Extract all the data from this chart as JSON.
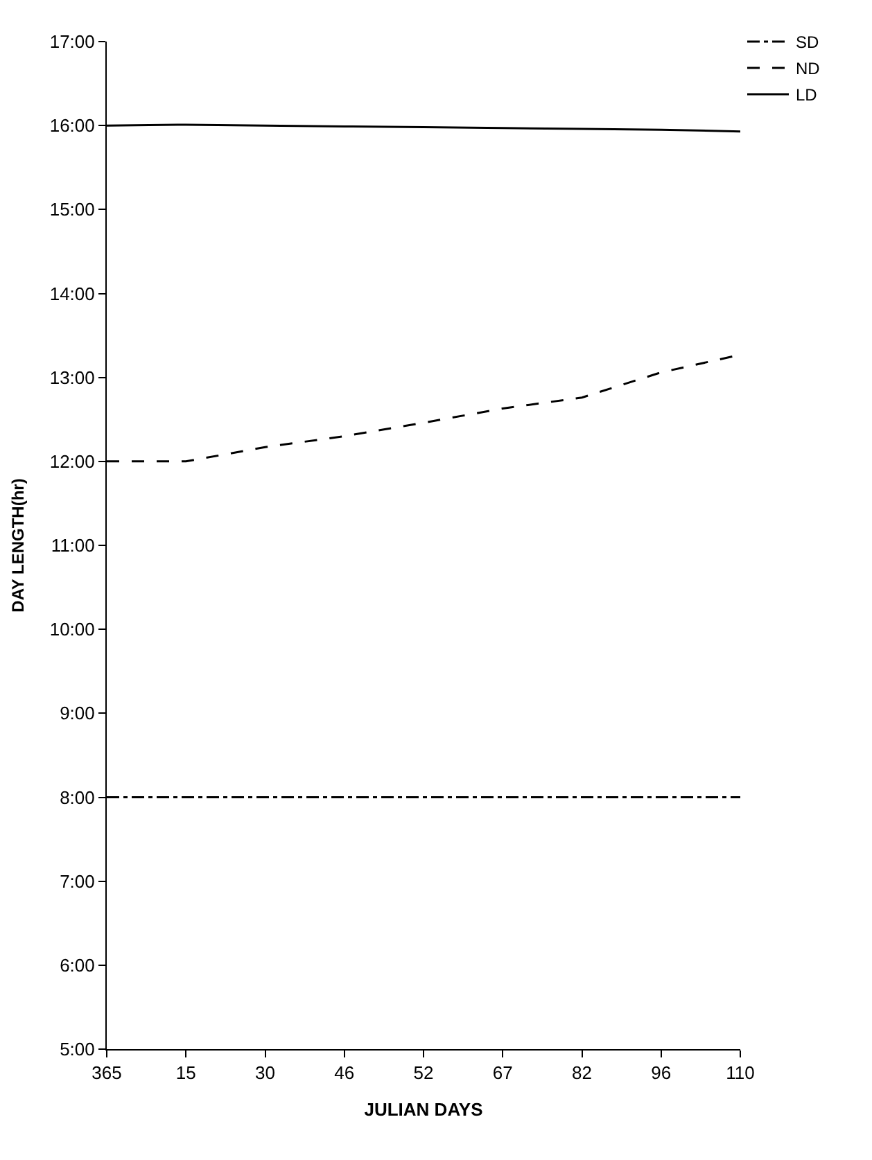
{
  "chart_data": {
    "type": "line",
    "xlabel": "JULIAN DAYS",
    "ylabel": "DAY LENGTH(hr)",
    "categories": [
      "365",
      "15",
      "30",
      "46",
      "52",
      "67",
      "82",
      "96",
      "110"
    ],
    "series": [
      {
        "name": "SD",
        "color": "#000000",
        "line_style": "dashdot",
        "values": [
          8.0,
          8.0,
          8.0,
          8.0,
          8.0,
          8.0,
          8.0,
          8.0,
          8.0
        ]
      },
      {
        "name": "ND",
        "color": "#000000",
        "line_style": "dashed",
        "values": [
          12.0,
          12.0,
          12.17,
          12.3,
          12.46,
          12.63,
          12.76,
          13.06,
          13.27
        ]
      },
      {
        "name": "LD",
        "color": "#000000",
        "line_style": "solid",
        "values": [
          16.0,
          16.01,
          16.0,
          15.99,
          15.98,
          15.97,
          15.96,
          15.95,
          15.93
        ]
      }
    ],
    "ylim": [
      5,
      17
    ],
    "yticks": [
      {
        "value": 5,
        "label": "5:00"
      },
      {
        "value": 6,
        "label": "6:00"
      },
      {
        "value": 7,
        "label": "7:00"
      },
      {
        "value": 8,
        "label": "8:00"
      },
      {
        "value": 9,
        "label": "9:00"
      },
      {
        "value": 10,
        "label": "10:00"
      },
      {
        "value": 11,
        "label": "11:00"
      },
      {
        "value": 12,
        "label": "12:00"
      },
      {
        "value": 13,
        "label": "13:00"
      },
      {
        "value": 14,
        "label": "14:00"
      },
      {
        "value": 15,
        "label": "15:00"
      },
      {
        "value": 16,
        "label": "16:00"
      },
      {
        "value": 17,
        "label": "17:00"
      }
    ],
    "legend": "top right",
    "marker": "none"
  }
}
